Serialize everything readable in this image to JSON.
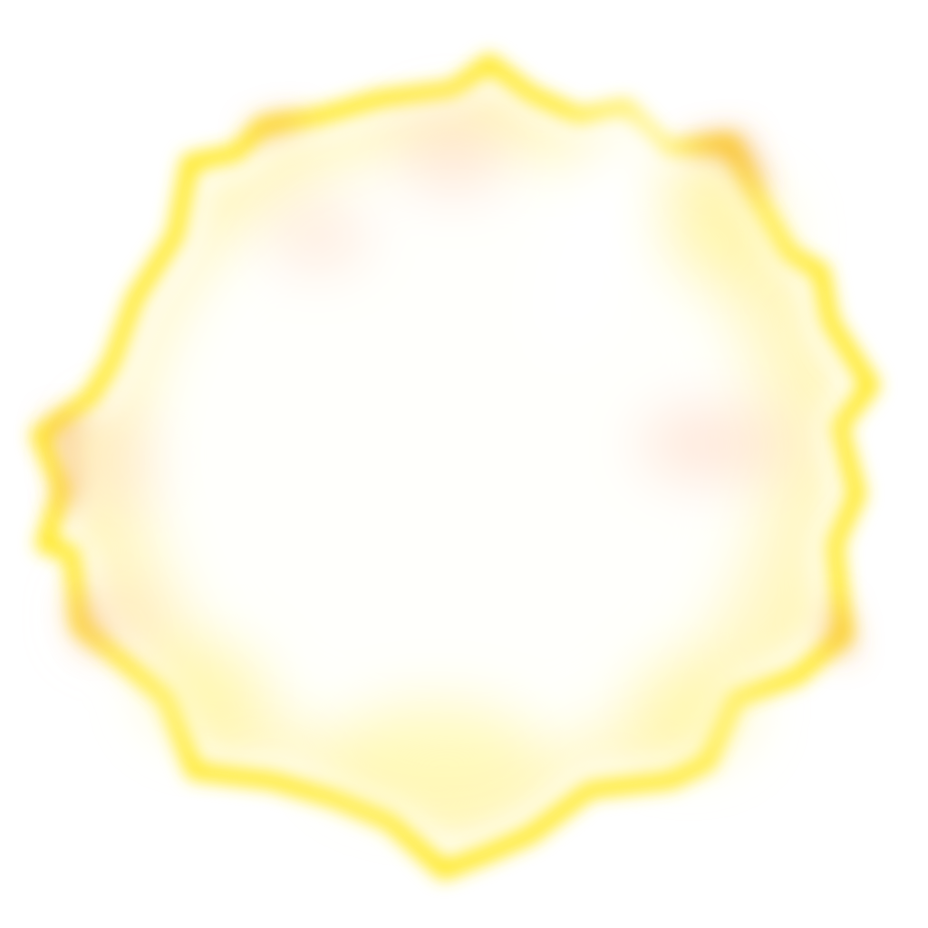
{
  "image": {
    "subject": "glowing-burst",
    "background_color": "#ffffff",
    "colors": {
      "core": "#fffefa",
      "glow": "#fffbe0",
      "edge_yellow": "#ffea2e",
      "edge_orange": "#f6a340",
      "blush": "#ffd9c2"
    }
  }
}
